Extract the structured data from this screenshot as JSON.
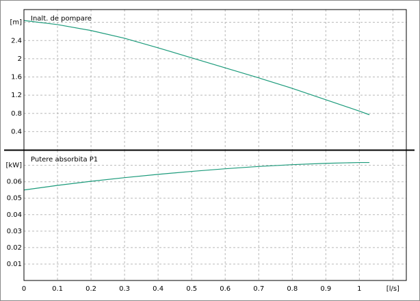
{
  "chart_data": [
    {
      "type": "line",
      "title": "Inalt. de pompare",
      "x": [
        0,
        0.1,
        0.2,
        0.3,
        0.4,
        0.5,
        0.6,
        0.7,
        0.8,
        0.9,
        1.0,
        1.03
      ],
      "series": [
        {
          "color": "#1a9a7a",
          "values": [
            2.84,
            2.75,
            2.62,
            2.45,
            2.24,
            2.02,
            1.8,
            1.58,
            1.35,
            1.1,
            0.85,
            0.77
          ]
        }
      ],
      "xlim": [
        0,
        1.14
      ],
      "ylim": [
        0,
        3.08
      ],
      "yticks": [
        0.4,
        0.8,
        1.2,
        1.6,
        2,
        2.4,
        {
          "value": 2.8,
          "label": "[m]"
        }
      ],
      "grid": true
    },
    {
      "type": "line",
      "title": "Putere absorbita P1",
      "x": [
        0,
        0.1,
        0.2,
        0.3,
        0.4,
        0.5,
        0.6,
        0.7,
        0.8,
        0.9,
        1.0,
        1.03
      ],
      "series": [
        {
          "color": "#1a9a7a",
          "values": [
            0.055,
            0.0578,
            0.0603,
            0.0625,
            0.0645,
            0.0663,
            0.0679,
            0.0693,
            0.0704,
            0.0712,
            0.0717,
            0.0717
          ]
        }
      ],
      "xlim": [
        0,
        1.14
      ],
      "ylim": [
        0,
        0.079
      ],
      "xticks": [
        0,
        0.1,
        0.2,
        0.3,
        0.4,
        0.5,
        0.6,
        0.7,
        0.8,
        0.9,
        1,
        {
          "value": 1.1,
          "label": "[l/s]"
        }
      ],
      "yticks": [
        0.01,
        0.02,
        0.03,
        0.04,
        0.05,
        0.06,
        {
          "value": 0.07,
          "label": "[kW]"
        }
      ],
      "grid": true
    }
  ]
}
